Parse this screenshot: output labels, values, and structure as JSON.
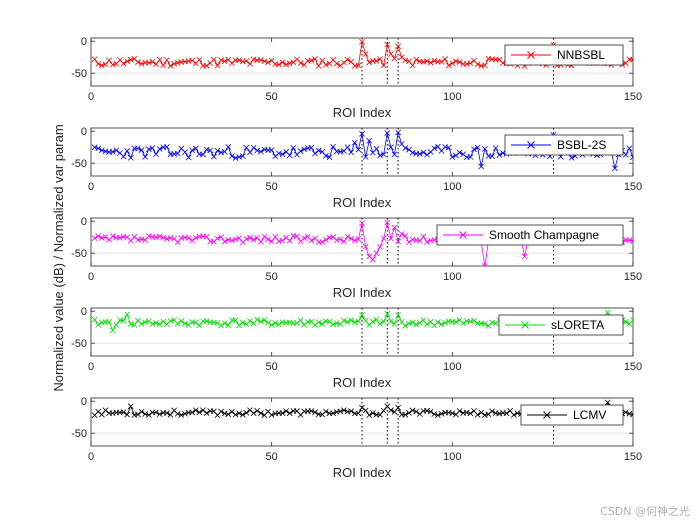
{
  "figure": {
    "ylabel": "Normalized value (dB) / Normalized var param",
    "watermark": "CSDN @何神之光",
    "marker_lines_x": [
      75,
      82,
      85,
      128
    ]
  },
  "chart_data": [
    {
      "type": "line",
      "name": "NNBSBL",
      "legend": "NNBSBL",
      "color": "#ff0000",
      "xlabel": "ROI Index",
      "xlim": [
        0,
        150
      ],
      "ylim": [
        -70,
        5
      ],
      "xticks": [
        0,
        50,
        100,
        150
      ],
      "yticks": [
        -50,
        0
      ],
      "base": -33,
      "amp": 6,
      "seed": 11,
      "peaks": [
        [
          75,
          -1
        ],
        [
          76,
          -20
        ],
        [
          80,
          -28
        ],
        [
          82,
          -5
        ],
        [
          83,
          -20
        ],
        [
          85,
          -8
        ],
        [
          86,
          -25
        ],
        [
          128,
          -6
        ]
      ]
    },
    {
      "type": "line",
      "name": "BSBL-2S",
      "legend": "BSBL-2S",
      "color": "#0000ff",
      "xlabel": "ROI Index",
      "xlim": [
        0,
        150
      ],
      "ylim": [
        -70,
        5
      ],
      "xticks": [
        0,
        50,
        100,
        150
      ],
      "yticks": [
        -50,
        0
      ],
      "base": -33,
      "amp": 9,
      "seed": 23,
      "peaks": [
        [
          73,
          -18
        ],
        [
          75,
          -4
        ],
        [
          77,
          -15
        ],
        [
          82,
          -3
        ],
        [
          83,
          -25
        ],
        [
          85,
          -2
        ],
        [
          86,
          -20
        ],
        [
          108,
          -55
        ],
        [
          128,
          -6
        ],
        [
          145,
          -58
        ]
      ]
    },
    {
      "type": "line",
      "name": "Smooth Champagne",
      "legend": "Smooth Champagne",
      "color": "#ff00ff",
      "xlabel": "ROI Index",
      "xlim": [
        0,
        150
      ],
      "ylim": [
        -70,
        5
      ],
      "xticks": [
        0,
        50,
        100,
        150
      ],
      "yticks": [
        -50,
        0
      ],
      "base": -28,
      "amp": 5,
      "seed": 37,
      "peaks": [
        [
          75,
          -3
        ],
        [
          76,
          -40
        ],
        [
          77,
          -55
        ],
        [
          78,
          -60
        ],
        [
          79,
          -50
        ],
        [
          80,
          -40
        ],
        [
          82,
          -2
        ],
        [
          84,
          -10
        ],
        [
          86,
          -20
        ],
        [
          109,
          -70
        ],
        [
          120,
          -55
        ]
      ]
    },
    {
      "type": "line",
      "name": "sLORETA",
      "legend": "sLORETA",
      "color": "#00dd00",
      "xlabel": "ROI Index",
      "xlim": [
        0,
        150
      ],
      "ylim": [
        -70,
        5
      ],
      "xticks": [
        0,
        50,
        100,
        150
      ],
      "yticks": [
        -50,
        0
      ],
      "base": -18,
      "amp": 5,
      "seed": 41,
      "peaks": [
        [
          6,
          -30
        ],
        [
          10,
          -5
        ],
        [
          75,
          -6
        ],
        [
          82,
          -4
        ],
        [
          85,
          -6
        ],
        [
          143,
          -2
        ]
      ]
    },
    {
      "type": "line",
      "name": "LCMV",
      "legend": "LCMV",
      "color": "#000000",
      "xlabel": "ROI Index",
      "xlim": [
        0,
        150
      ],
      "ylim": [
        -70,
        5
      ],
      "xticks": [
        0,
        50,
        100,
        150
      ],
      "yticks": [
        -50,
        0
      ],
      "base": -18,
      "amp": 4,
      "seed": 53,
      "peaks": [
        [
          11,
          -8
        ],
        [
          75,
          -10
        ],
        [
          82,
          -8
        ],
        [
          85,
          -10
        ],
        [
          143,
          -2
        ]
      ]
    }
  ]
}
